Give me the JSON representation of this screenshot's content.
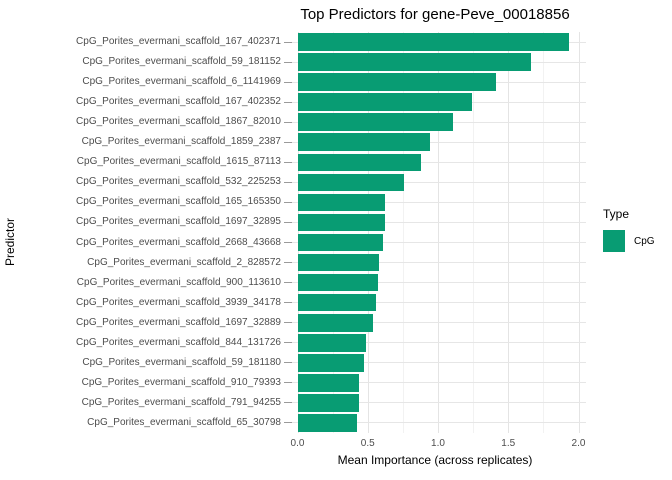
{
  "title": "Top Predictors for gene-Peve_00018856",
  "x_axis": {
    "label": "Mean Importance (across replicates)",
    "tick_labels": [
      "0.0",
      "0.5",
      "1.0",
      "1.5",
      "2.0"
    ]
  },
  "y_axis": {
    "label": "Predictor"
  },
  "legend": {
    "title": "Type",
    "items": [
      {
        "label": "CpG",
        "color": "#089c73"
      }
    ]
  },
  "colors": {
    "bar": "#089c73",
    "grid_major": "#e4e4e4",
    "grid_minor": "#f2f2f2",
    "tick_text": "#4d4d4d",
    "title_text": "#000000"
  },
  "chart_data": {
    "type": "bar",
    "orientation": "horizontal",
    "title": "Top Predictors for gene-Peve_00018856",
    "xlabel": "Mean Importance (across replicates)",
    "ylabel": "Predictor",
    "xlim": [
      0,
      2.02
    ],
    "x_major_ticks": [
      0,
      0.5,
      1.0,
      1.5,
      2.0
    ],
    "x_minor_ticks": [
      0.25,
      0.75,
      1.25,
      1.75
    ],
    "grid": true,
    "legend_position": "right",
    "series_name": "CpG",
    "categories": [
      "CpG_Porites_evermani_scaffold_167_402371",
      "CpG_Porites_evermani_scaffold_59_181152",
      "CpG_Porites_evermani_scaffold_6_1141969",
      "CpG_Porites_evermani_scaffold_167_402352",
      "CpG_Porites_evermani_scaffold_1867_82010",
      "CpG_Porites_evermani_scaffold_1859_2387",
      "CpG_Porites_evermani_scaffold_1615_87113",
      "CpG_Porites_evermani_scaffold_532_225253",
      "CpG_Porites_evermani_scaffold_165_165350",
      "CpG_Porites_evermani_scaffold_1697_32895",
      "CpG_Porites_evermani_scaffold_2668_43668",
      "CpG_Porites_evermani_scaffold_2_828572",
      "CpG_Porites_evermani_scaffold_900_113610",
      "CpG_Porites_evermani_scaffold_3939_34178",
      "CpG_Porites_evermani_scaffold_1697_32889",
      "CpG_Porites_evermani_scaffold_844_131726",
      "CpG_Porites_evermani_scaffold_59_181180",
      "CpG_Porites_evermani_scaffold_910_79393",
      "CpG_Porites_evermani_scaffold_791_94255",
      "CpG_Porites_evermani_scaffold_65_30798"
    ],
    "values": [
      1.93,
      1.66,
      1.41,
      1.24,
      1.11,
      0.94,
      0.88,
      0.76,
      0.62,
      0.62,
      0.61,
      0.58,
      0.57,
      0.56,
      0.54,
      0.49,
      0.47,
      0.44,
      0.44,
      0.42
    ]
  }
}
